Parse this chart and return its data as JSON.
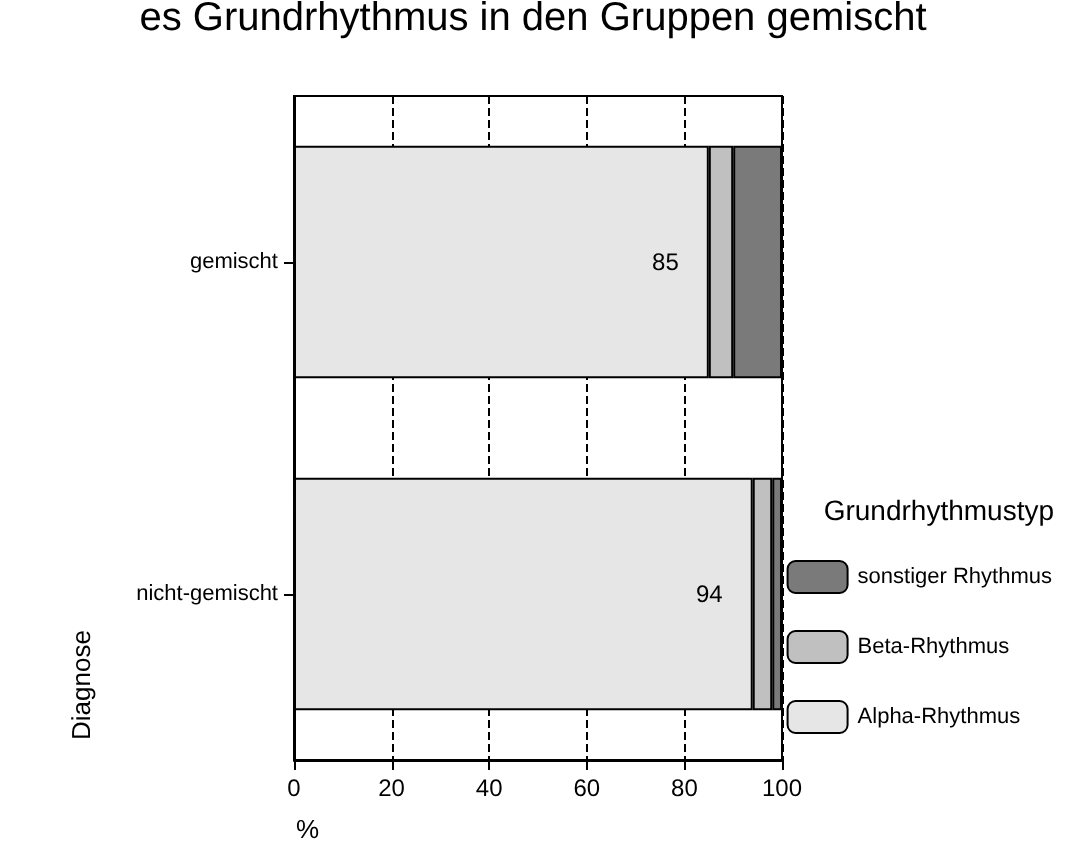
{
  "chart_data": {
    "type": "bar",
    "orientation": "horizontal",
    "stacked": true,
    "title": "es Grundrhythmus in den Gruppen gemischt",
    "xlabel": "%",
    "ylabel": "Diagnose",
    "legend_title": "Grundrhythmustyp",
    "categories": [
      "gemischt",
      "nicht-gemischt"
    ],
    "series": [
      {
        "name": "Alpha-Rhythmus",
        "color": "#e6e6e6",
        "values": [
          85,
          94
        ],
        "value_labels": [
          "85",
          "94"
        ]
      },
      {
        "name": "Beta-Rhythmus",
        "color": "#c0c0c0",
        "values": [
          5,
          4
        ]
      },
      {
        "name": "sonstiger Rhythmus",
        "color": "#7a7a7a",
        "values": [
          10,
          2
        ]
      }
    ],
    "xlim": [
      0,
      100
    ],
    "xticks": [
      0,
      20,
      40,
      60,
      80,
      100
    ],
    "grid": "x",
    "legend": "right"
  }
}
